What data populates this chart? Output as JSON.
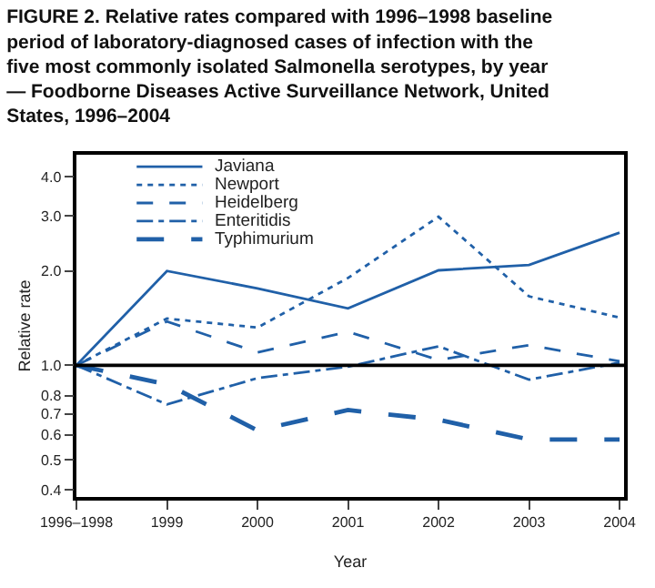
{
  "chart_data": {
    "type": "line",
    "title": "FIGURE 2. Relative rates compared with 1996–1998 baseline period of laboratory-diagnosed cases of infection with the five most commonly isolated Salmonella serotypes, by year — Foodborne Diseases Active Surveillance Network, United States, 1996–2004",
    "xlabel": "Year",
    "ylabel": "Relative rate",
    "categories": [
      "1996–1998",
      "1999",
      "2000",
      "2001",
      "2002",
      "2003",
      "2004"
    ],
    "series": [
      {
        "name": "Javiana",
        "color": "#2060a8",
        "line_style": "solid",
        "values": [
          1.0,
          2.0,
          1.76,
          1.52,
          2.01,
          2.09,
          2.65
        ]
      },
      {
        "name": "Newport",
        "color": "#2060a8",
        "line_style": "dotted",
        "values": [
          1.0,
          1.41,
          1.32,
          1.9,
          2.98,
          1.66,
          1.42
        ]
      },
      {
        "name": "Heidelberg",
        "color": "#2060a8",
        "line_style": "dashed",
        "values": [
          1.0,
          1.38,
          1.1,
          1.28,
          1.04,
          1.16,
          1.03
        ]
      },
      {
        "name": "Enteritidis",
        "color": "#2060a8",
        "line_style": "dashdot",
        "values": [
          1.0,
          0.75,
          0.91,
          0.99,
          1.15,
          0.9,
          1.02
        ]
      },
      {
        "name": "Typhimurium",
        "color": "#2060a8",
        "line_style": "longdash",
        "values": [
          1.0,
          0.87,
          0.62,
          0.72,
          0.67,
          0.58,
          0.58
        ]
      }
    ],
    "log": "y",
    "ylim": [
      0.38,
      4.7
    ],
    "yticks": [
      {
        "value": 0.4,
        "label": "0.4"
      },
      {
        "value": 0.5,
        "label": "0.5"
      },
      {
        "value": 0.6,
        "label": "0.6"
      },
      {
        "value": 0.7,
        "label": "0.7"
      },
      {
        "value": 0.8,
        "label": "0.8"
      },
      {
        "value": 1,
        "label": "1.0"
      },
      {
        "value": 2,
        "label": "2.0"
      },
      {
        "value": 3,
        "label": "3.0"
      },
      {
        "value": 4,
        "label": "4.0"
      }
    ],
    "ref_lines": [
      {
        "axis": "y",
        "value": 1,
        "color": "#000000",
        "line_style": "solid"
      }
    ],
    "legend": "top",
    "marker": "none"
  }
}
